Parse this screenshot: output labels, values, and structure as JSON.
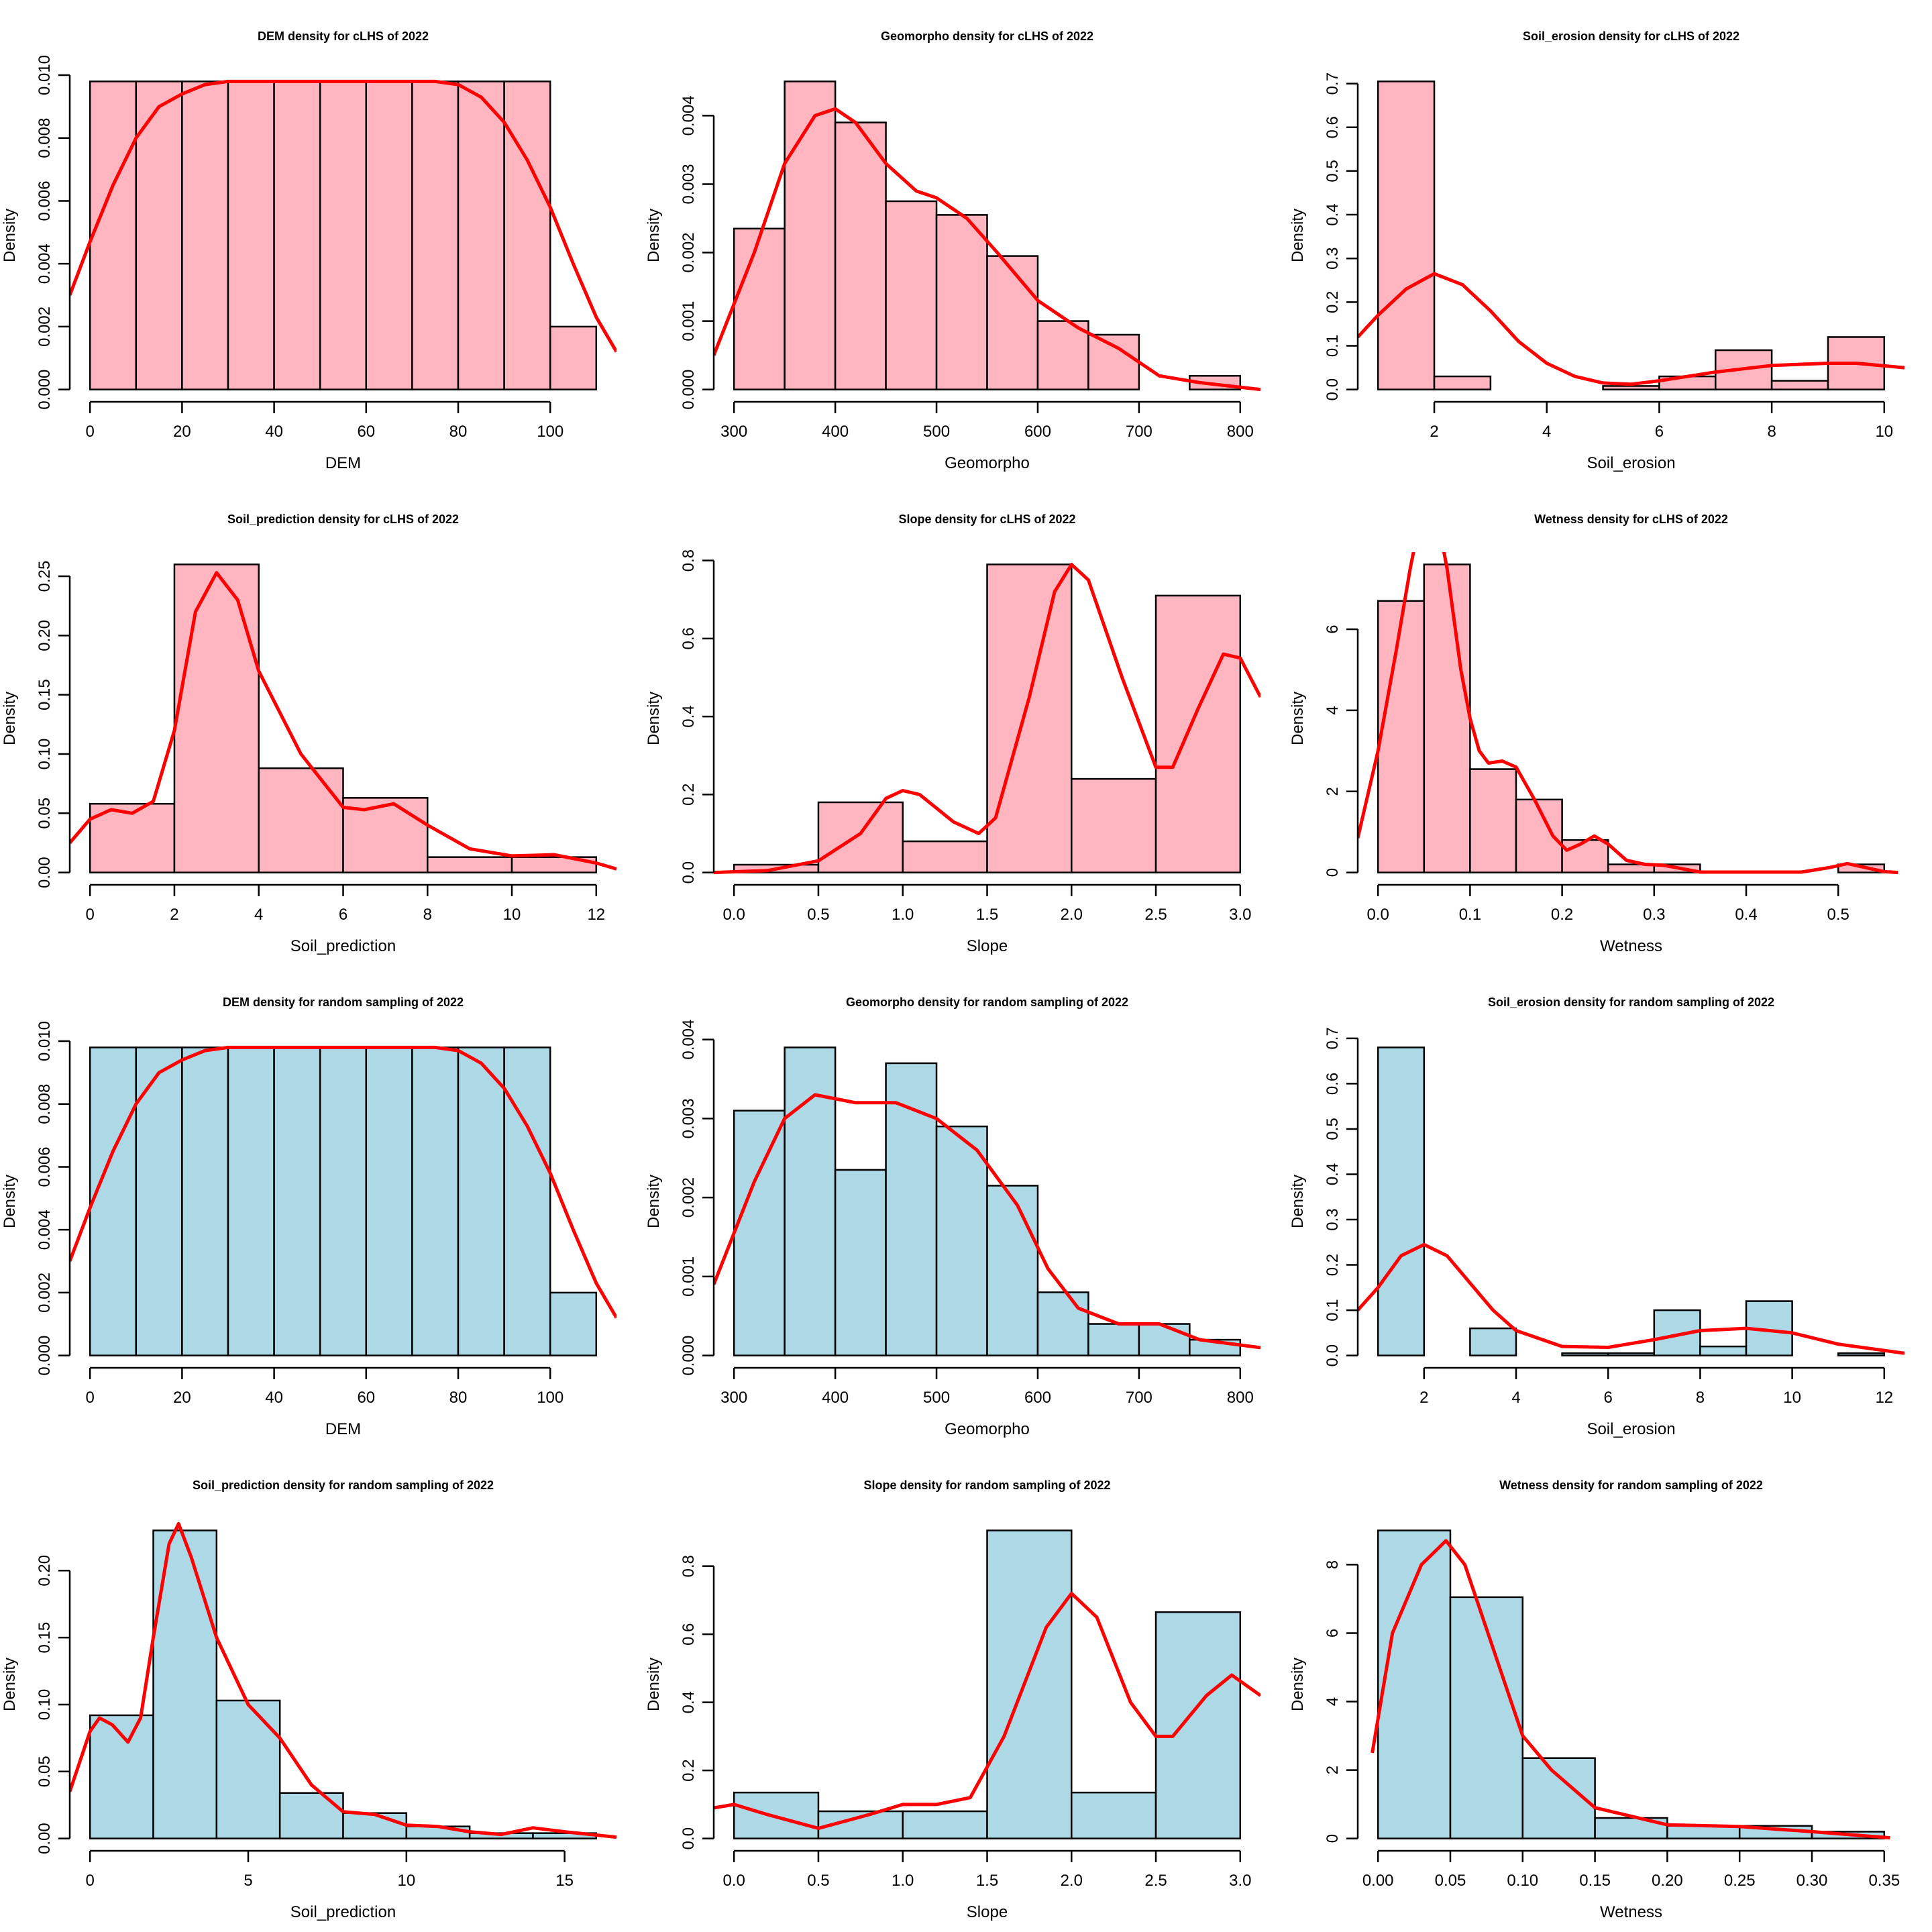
{
  "chart_data": [
    {
      "type": "bar",
      "title": "DEM density for cLHS of 2022",
      "xlabel": "DEM",
      "ylabel": "Density",
      "fill": "#FFB6C1",
      "breaks": [
        0,
        10,
        20,
        30,
        40,
        50,
        60,
        70,
        80,
        90,
        100,
        110
      ],
      "values": [
        0.0098,
        0.0098,
        0.0098,
        0.0098,
        0.0098,
        0.0098,
        0.0098,
        0.0098,
        0.0098,
        0.0098,
        0.002
      ],
      "xticks": [
        "0",
        "20",
        "40",
        "60",
        "80",
        "100"
      ],
      "yticks": [
        "0.000",
        "0.002",
        "0.004",
        "0.006",
        "0.008",
        "0.010"
      ],
      "curve": {
        "x": [
          -4.4,
          0,
          5,
          10,
          15,
          20,
          25,
          30,
          50,
          75,
          80,
          85,
          90,
          95,
          100,
          105,
          110,
          114.4
        ],
        "y": [
          0.003,
          0.0047,
          0.0065,
          0.008,
          0.009,
          0.0094,
          0.0097,
          0.0098,
          0.0098,
          0.0098,
          0.0097,
          0.0093,
          0.0085,
          0.0073,
          0.0058,
          0.004,
          0.0023,
          0.0012
        ]
      }
    },
    {
      "type": "bar",
      "title": "Geomorpho density for cLHS of 2022",
      "xlabel": "Geomorpho",
      "ylabel": "Density",
      "fill": "#FFB6C1",
      "breaks": [
        300,
        350,
        400,
        450,
        500,
        550,
        600,
        650,
        700,
        750,
        800
      ],
      "values": [
        0.00235,
        0.0045,
        0.0039,
        0.00275,
        0.00255,
        0.00195,
        0.001,
        0.0008,
        0,
        0.0002
      ],
      "xticks": [
        "300",
        "400",
        "500",
        "600",
        "700",
        "800"
      ],
      "yticks": [
        "0.000",
        "0.001",
        "0.002",
        "0.003",
        "0.004"
      ],
      "curve": {
        "x": [
          280,
          320,
          350,
          380,
          400,
          420,
          450,
          480,
          500,
          530,
          560,
          600,
          640,
          680,
          720,
          760,
          820
        ],
        "y": [
          0.0005,
          0.002,
          0.0033,
          0.004,
          0.0041,
          0.0039,
          0.0033,
          0.0029,
          0.0028,
          0.0025,
          0.002,
          0.0013,
          0.0009,
          0.0006,
          0.0002,
          0.0001,
          0.0
        ]
      }
    },
    {
      "type": "bar",
      "title": "Soil_erosion density for cLHS of 2022",
      "xlabel": "Soil_erosion",
      "ylabel": "Density",
      "fill": "#FFB6C1",
      "breaks": [
        1,
        2,
        3,
        4,
        5,
        6,
        7,
        8,
        9,
        10
      ],
      "values": [
        0.705,
        0.03,
        0,
        0,
        0.008,
        0.03,
        0.09,
        0.02,
        0.12
      ],
      "xticks": [
        "2",
        "4",
        "6",
        "8",
        "10"
      ],
      "yticks": [
        "0.0",
        "0.1",
        "0.2",
        "0.3",
        "0.4",
        "0.5",
        "0.6",
        "0.7"
      ],
      "curve": {
        "x": [
          0.64,
          1,
          1.5,
          2,
          2.5,
          3,
          3.5,
          4,
          4.5,
          5,
          5.5,
          6,
          7,
          8,
          9,
          9.5,
          10.36
        ],
        "y": [
          0.12,
          0.17,
          0.23,
          0.265,
          0.24,
          0.18,
          0.11,
          0.06,
          0.03,
          0.015,
          0.012,
          0.02,
          0.04,
          0.055,
          0.06,
          0.06,
          0.05
        ]
      }
    },
    {
      "type": "bar",
      "title": "Soil_prediction density for cLHS of 2022",
      "xlabel": "Soil_prediction",
      "ylabel": "Density",
      "fill": "#FFB6C1",
      "breaks": [
        0,
        2,
        4,
        6,
        8,
        10,
        12
      ],
      "values": [
        0.058,
        0.26,
        0.088,
        0.063,
        0.013,
        0.013
      ],
      "xticks": [
        "0",
        "2",
        "4",
        "6",
        "8",
        "10",
        "12"
      ],
      "yticks": [
        "0.00",
        "0.05",
        "0.10",
        "0.15",
        "0.20",
        "0.25"
      ],
      "curve": {
        "x": [
          -0.48,
          0,
          0.5,
          1,
          1.5,
          2,
          2.5,
          3,
          3.5,
          4,
          5,
          6,
          6.5,
          7.2,
          8,
          9,
          10,
          11,
          12,
          12.48
        ],
        "y": [
          0.025,
          0.045,
          0.053,
          0.05,
          0.06,
          0.12,
          0.22,
          0.253,
          0.23,
          0.17,
          0.1,
          0.055,
          0.053,
          0.058,
          0.04,
          0.02,
          0.014,
          0.015,
          0.008,
          0.003
        ]
      }
    },
    {
      "type": "bar",
      "title": "Slope density for cLHS of 2022",
      "xlabel": "Slope",
      "ylabel": "Density",
      "fill": "#FFB6C1",
      "breaks": [
        0,
        0.5,
        1,
        1.5,
        2,
        2.5,
        3
      ],
      "values": [
        0.02,
        0.18,
        0.08,
        0.79,
        0.24,
        0.71
      ],
      "xticks": [
        "0.0",
        "0.5",
        "1.0",
        "1.5",
        "2.0",
        "2.5",
        "3.0"
      ],
      "yticks": [
        "0.0",
        "0.2",
        "0.4",
        "0.6",
        "0.8"
      ],
      "curve": {
        "x": [
          -0.12,
          0.2,
          0.5,
          0.75,
          0.9,
          1.0,
          1.1,
          1.3,
          1.45,
          1.55,
          1.75,
          1.9,
          2.0,
          2.1,
          2.3,
          2.5,
          2.6,
          2.75,
          2.9,
          3.0,
          3.12
        ],
        "y": [
          0,
          0.005,
          0.03,
          0.1,
          0.19,
          0.21,
          0.2,
          0.13,
          0.1,
          0.14,
          0.45,
          0.72,
          0.79,
          0.75,
          0.5,
          0.27,
          0.27,
          0.42,
          0.56,
          0.55,
          0.45
        ]
      }
    },
    {
      "type": "bar",
      "title": "Wetness density for cLHS of 2022",
      "xlabel": "Wetness",
      "ylabel": "Density",
      "fill": "#FFB6C1",
      "breaks": [
        0,
        0.05,
        0.1,
        0.15,
        0.2,
        0.25,
        0.3,
        0.35,
        0.4,
        0.45,
        0.5,
        0.55
      ],
      "values": [
        6.7,
        7.6,
        2.55,
        1.8,
        0.8,
        0.2,
        0.2,
        0,
        0,
        0,
        0.2
      ],
      "xticks": [
        "0.0",
        "0.1",
        "0.2",
        "0.3",
        "0.4",
        "0.5"
      ],
      "yticks": [
        "0",
        "2",
        "4",
        "6"
      ],
      "curve": {
        "x": [
          -0.022,
          0,
          0.02,
          0.035,
          0.05,
          0.06,
          0.075,
          0.09,
          0.1,
          0.11,
          0.12,
          0.135,
          0.15,
          0.17,
          0.19,
          0.205,
          0.22,
          0.235,
          0.25,
          0.27,
          0.29,
          0.31,
          0.35,
          0.46,
          0.49,
          0.51,
          0.53,
          0.55,
          0.565
        ],
        "y": [
          0.85,
          3,
          5.5,
          7.5,
          9.2,
          9.3,
          7.5,
          5,
          3.8,
          3,
          2.7,
          2.75,
          2.6,
          1.8,
          0.9,
          0.55,
          0.7,
          0.9,
          0.7,
          0.3,
          0.2,
          0.18,
          0.01,
          0.01,
          0.12,
          0.22,
          0.12,
          0.02,
          0
        ]
      }
    },
    {
      "type": "bar",
      "title": "DEM density for random sampling of 2022",
      "xlabel": "DEM",
      "ylabel": "Density",
      "fill": "#ADD8E6",
      "breaks": [
        0,
        10,
        20,
        30,
        40,
        50,
        60,
        70,
        80,
        90,
        100,
        110
      ],
      "values": [
        0.0098,
        0.0098,
        0.0098,
        0.0098,
        0.0098,
        0.0098,
        0.0098,
        0.0098,
        0.0098,
        0.0098,
        0.002
      ],
      "xticks": [
        "0",
        "20",
        "40",
        "60",
        "80",
        "100"
      ],
      "yticks": [
        "0.000",
        "0.002",
        "0.004",
        "0.006",
        "0.008",
        "0.010"
      ],
      "curve": {
        "x": [
          -4.4,
          0,
          5,
          10,
          15,
          20,
          25,
          30,
          50,
          75,
          80,
          85,
          90,
          95,
          100,
          105,
          110,
          114.4
        ],
        "y": [
          0.003,
          0.0047,
          0.0065,
          0.008,
          0.009,
          0.0094,
          0.0097,
          0.0098,
          0.0098,
          0.0098,
          0.0097,
          0.0093,
          0.0085,
          0.0073,
          0.0058,
          0.004,
          0.0023,
          0.0012
        ]
      }
    },
    {
      "type": "bar",
      "title": "Geomorpho density for random sampling of 2022",
      "xlabel": "Geomorpho",
      "ylabel": "Density",
      "fill": "#ADD8E6",
      "breaks": [
        300,
        350,
        400,
        450,
        500,
        550,
        600,
        650,
        700,
        750,
        800
      ],
      "values": [
        0.0031,
        0.0039,
        0.00235,
        0.0037,
        0.0029,
        0.00215,
        0.0008,
        0.0004,
        0.0004,
        0.0002
      ],
      "xticks": [
        "300",
        "400",
        "500",
        "600",
        "700",
        "800"
      ],
      "yticks": [
        "0.000",
        "0.001",
        "0.002",
        "0.003",
        "0.004"
      ],
      "curve": {
        "x": [
          280,
          320,
          350,
          380,
          420,
          460,
          500,
          540,
          580,
          610,
          640,
          680,
          720,
          760,
          820
        ],
        "y": [
          0.0009,
          0.0022,
          0.003,
          0.0033,
          0.0032,
          0.0032,
          0.003,
          0.0026,
          0.0019,
          0.0011,
          0.0006,
          0.0004,
          0.0004,
          0.0002,
          0.0001
        ]
      }
    },
    {
      "type": "bar",
      "title": "Soil_erosion density for random sampling of 2022",
      "xlabel": "Soil_erosion",
      "ylabel": "Density",
      "fill": "#ADD8E6",
      "breaks": [
        1,
        2,
        3,
        4,
        5,
        6,
        7,
        8,
        9,
        10,
        11,
        12
      ],
      "values": [
        0.68,
        0,
        0.06,
        0,
        0.005,
        0.005,
        0.1,
        0.02,
        0.12,
        0,
        0.005
      ],
      "xticks": [
        "2",
        "4",
        "6",
        "8",
        "10",
        "12"
      ],
      "yticks": [
        "0.0",
        "0.1",
        "0.2",
        "0.3",
        "0.4",
        "0.5",
        "0.6",
        "0.7"
      ],
      "curve": {
        "x": [
          0.56,
          1,
          1.5,
          2,
          2.5,
          3,
          3.5,
          4,
          5,
          6,
          7,
          8,
          9,
          10,
          11,
          12.44
        ],
        "y": [
          0.1,
          0.15,
          0.22,
          0.245,
          0.22,
          0.16,
          0.1,
          0.055,
          0.02,
          0.018,
          0.035,
          0.055,
          0.06,
          0.05,
          0.025,
          0.005
        ]
      }
    },
    {
      "type": "bar",
      "title": "Soil_prediction density for random sampling of 2022",
      "xlabel": "Soil_prediction",
      "ylabel": "Density",
      "fill": "#ADD8E6",
      "breaks": [
        0,
        2,
        4,
        6,
        8,
        10,
        12,
        14,
        16
      ],
      "values": [
        0.092,
        0.23,
        0.103,
        0.034,
        0.019,
        0.009,
        0.004,
        0.004
      ],
      "xticks": [
        "0",
        "5",
        "10",
        "15"
      ],
      "yticks": [
        "0.00",
        "0.05",
        "0.10",
        "0.15",
        "0.20"
      ],
      "curve": {
        "x": [
          -0.64,
          0,
          0.3,
          0.7,
          1.2,
          1.6,
          2,
          2.5,
          2.8,
          3.2,
          4,
          5,
          6,
          7,
          8,
          9,
          10,
          11,
          12,
          13,
          14,
          15,
          16.64
        ],
        "y": [
          0.035,
          0.08,
          0.09,
          0.085,
          0.072,
          0.09,
          0.15,
          0.22,
          0.235,
          0.21,
          0.15,
          0.1,
          0.075,
          0.04,
          0.02,
          0.018,
          0.01,
          0.009,
          0.005,
          0.003,
          0.008,
          0.005,
          0.001
        ]
      }
    },
    {
      "type": "bar",
      "title": "Slope density for random sampling of 2022",
      "xlabel": "Slope",
      "ylabel": "Density",
      "fill": "#ADD8E6",
      "breaks": [
        0,
        0.5,
        1,
        1.5,
        2,
        2.5,
        3
      ],
      "values": [
        0.135,
        0.08,
        0.08,
        0.905,
        0.135,
        0.665
      ],
      "xticks": [
        "0.0",
        "0.5",
        "1.0",
        "1.5",
        "2.0",
        "2.5",
        "3.0"
      ],
      "yticks": [
        "0.0",
        "0.2",
        "0.4",
        "0.6",
        "0.8"
      ],
      "curve": {
        "x": [
          -0.12,
          0,
          0.2,
          0.5,
          0.8,
          1.0,
          1.2,
          1.4,
          1.6,
          1.85,
          2.0,
          2.15,
          2.35,
          2.5,
          2.6,
          2.8,
          2.95,
          3.12
        ],
        "y": [
          0.09,
          0.1,
          0.07,
          0.03,
          0.07,
          0.1,
          0.1,
          0.12,
          0.3,
          0.62,
          0.72,
          0.65,
          0.4,
          0.3,
          0.3,
          0.42,
          0.48,
          0.42
        ]
      }
    },
    {
      "type": "bar",
      "title": "Wetness density for random sampling of 2022",
      "xlabel": "Wetness",
      "ylabel": "Density",
      "fill": "#ADD8E6",
      "breaks": [
        0,
        0.05,
        0.1,
        0.15,
        0.2,
        0.25,
        0.3,
        0.35
      ],
      "values": [
        9.0,
        7.05,
        2.35,
        0.6,
        0.37,
        0.37,
        0.2
      ],
      "xticks": [
        "0.00",
        "0.05",
        "0.10",
        "0.15",
        "0.20",
        "0.25",
        "0.30",
        "0.35"
      ],
      "yticks": [
        "0",
        "2",
        "4",
        "6",
        "8"
      ],
      "curve": {
        "x": [
          -0.004,
          0.01,
          0.03,
          0.047,
          0.06,
          0.08,
          0.1,
          0.12,
          0.15,
          0.2,
          0.25,
          0.3,
          0.354
        ],
        "y": [
          2.5,
          6,
          8,
          8.7,
          8,
          5.5,
          3,
          2,
          0.9,
          0.4,
          0.35,
          0.2,
          0.02
        ]
      }
    }
  ],
  "colors": {
    "curve": "#FF0000",
    "outline": "#000000"
  }
}
